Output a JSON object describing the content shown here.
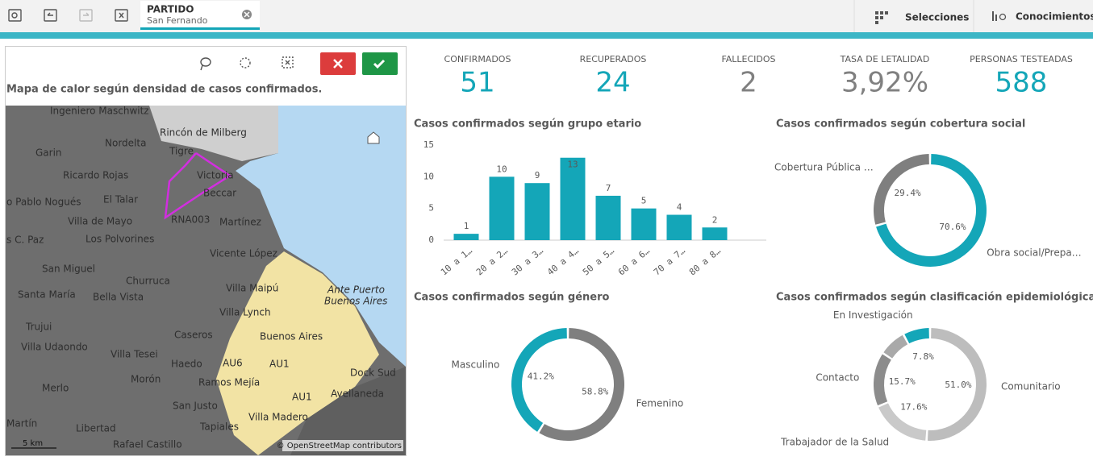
{
  "toolbar": {
    "tab": {
      "label": "PARTIDO",
      "value": "San Fernando"
    },
    "selections": "Selecciones",
    "insights": "Conocimientos"
  },
  "map": {
    "title": "Mapa de calor según densidad de casos confirmados.",
    "labels": [
      "Ingeniero Maschwitz",
      "Rincón de Milberg",
      "Garin",
      "Nordelta",
      "Tigre",
      "Victoria",
      "Beccar",
      "Ricardo Rojas",
      "El Talar",
      "o Pablo Nogués",
      "Villa de Mayo",
      "RNA003",
      "Martínez",
      "s C. Paz",
      "Los Polvorines",
      "Vicente López",
      "San Miguel",
      "Churruca",
      "Villa Maipú",
      "Ante Puerto",
      "Buenos Aires",
      "Santa María",
      "Bella Vista",
      "Villa Lynch",
      "Trujui",
      "Caseros",
      "Buenos Aires",
      "Villa Udaondo",
      "Villa Tesei",
      "Haedo",
      "AU6",
      "AU1",
      "Merlo",
      "Morón",
      "Ramos Mejía",
      "Dock Sud",
      "San Justo",
      "AU1",
      "Avellaneda",
      "Martín",
      "Tapiales",
      "Villa Madero",
      "Libertad",
      "Rafael Castillo"
    ],
    "scale": "5 km",
    "attribution": "© OpenStreetMap contributors"
  },
  "kpis": [
    {
      "label": "CONFIRMADOS",
      "value": 51
    },
    {
      "label": "RECUPERADOS",
      "value": 24
    },
    {
      "label": "FALLECIDOS",
      "value": 2
    },
    {
      "label": "TASA DE LETALIDAD",
      "value": "3,92%"
    },
    {
      "label": "PERSONAS TESTEADAS",
      "value": 588
    }
  ],
  "chart_data": [
    {
      "type": "bar",
      "title": "Casos confirmados según grupo etario",
      "categories": [
        "10 a 1…",
        "20 a 2…",
        "30 a 3…",
        "40 a 4…",
        "50 a 5…",
        "60 a 6…",
        "70 a 7…",
        "80 a 8…"
      ],
      "values": [
        1,
        10,
        9,
        13,
        7,
        5,
        4,
        2
      ],
      "color": "#14a6b8",
      "ylim": [
        0,
        15
      ],
      "yticks": [
        0,
        5,
        10,
        15
      ],
      "grid": false
    },
    {
      "type": "donut",
      "title": "Casos confirmados según cobertura social",
      "categories": [
        "Obra social/Prepa…",
        "Cobertura Pública …"
      ],
      "values": [
        70.6,
        29.4
      ],
      "value_labels": [
        "70.6%",
        "29.4%"
      ],
      "colors": [
        "#14a6b8",
        "#7f7f7f"
      ]
    },
    {
      "type": "donut",
      "title": "Casos confirmados según género",
      "categories": [
        "Femenino",
        "Masculino"
      ],
      "values": [
        58.8,
        41.2
      ],
      "value_labels": [
        "58.8%",
        "41.2%"
      ],
      "colors": [
        "#7f7f7f",
        "#14a6b8"
      ]
    },
    {
      "type": "donut",
      "title": "Casos confirmados según clasificación epidemiológica",
      "categories": [
        "Comunitario",
        "Trabajador de la Salud",
        "Contacto",
        null,
        "En Investigación"
      ],
      "values": [
        51.0,
        17.6,
        15.7,
        7.9,
        7.8
      ],
      "value_labels": [
        "51.0%",
        "17.6%",
        "15.7%",
        null,
        "7.8%"
      ],
      "colors": [
        "#bdbdbd",
        "#c9c9c9",
        "#8c8c8c",
        "#a9a9a9",
        "#14a6b8"
      ]
    }
  ]
}
